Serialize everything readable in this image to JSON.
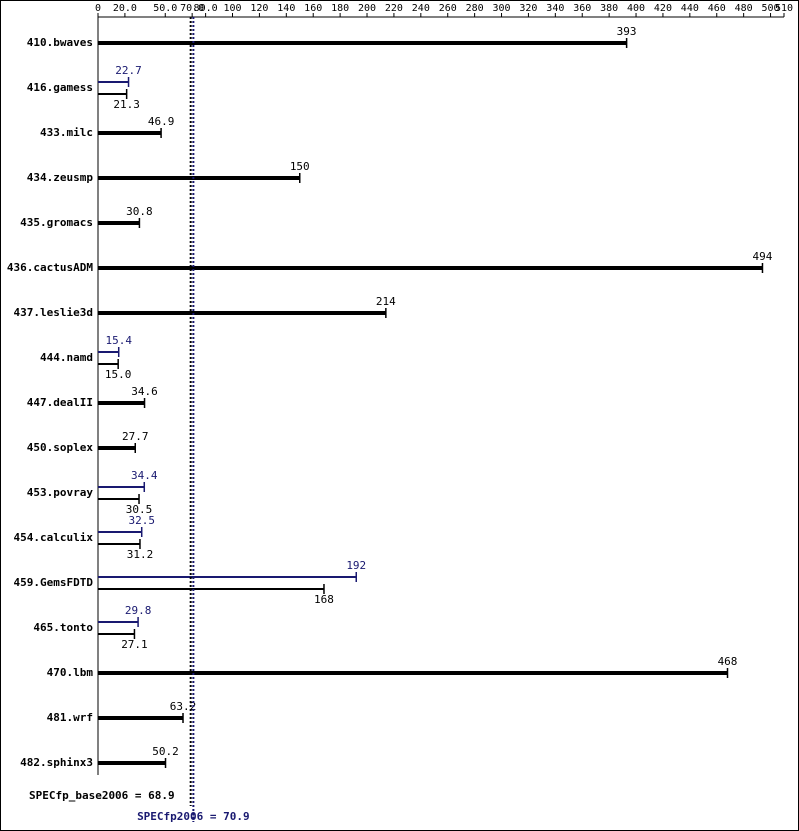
{
  "chart_data": {
    "type": "bar",
    "orientation": "horizontal",
    "categories": [
      "410.bwaves",
      "416.gamess",
      "433.milc",
      "434.zeusmp",
      "435.gromacs",
      "436.cactusADM",
      "437.leslie3d",
      "444.namd",
      "447.dealII",
      "450.soplex",
      "453.povray",
      "454.calculix",
      "459.GemsFDTD",
      "465.tonto",
      "470.lbm",
      "481.wrf",
      "482.sphinx3"
    ],
    "series": [
      {
        "color": "#000000",
        "values": [
          393,
          21.3,
          46.9,
          150,
          30.8,
          494,
          214,
          15,
          34.6,
          27.7,
          30.5,
          31.2,
          168,
          27.1,
          468,
          63.2,
          50.2
        ],
        "value_labels": [
          "393",
          "21.3",
          "46.9",
          "150",
          "30.8",
          "494",
          "214",
          "15.0",
          "34.6",
          "27.7",
          "30.5",
          "31.2",
          "168",
          "27.1",
          "468",
          "63.2",
          "50.2"
        ]
      },
      {
        "color": "#191970",
        "values": [
          null,
          22.7,
          null,
          null,
          null,
          null,
          null,
          15.4,
          null,
          null,
          34.4,
          32.5,
          192,
          29.8,
          null,
          null,
          null
        ],
        "value_labels": [
          null,
          "22.7",
          null,
          null,
          null,
          null,
          null,
          "15.4",
          null,
          null,
          "34.4",
          "32.5",
          "192",
          "29.8",
          null,
          null,
          null
        ]
      }
    ],
    "xlim": [
      0,
      510
    ],
    "xticks": [
      0,
      {
        "value": 20,
        "label": "20.0"
      },
      {
        "value": 50,
        "label": "50.0"
      },
      {
        "value": 70,
        "label": "70.0"
      },
      {
        "value": 80,
        "label": "80.0"
      },
      100,
      120,
      140,
      160,
      180,
      200,
      220,
      240,
      260,
      280,
      300,
      320,
      340,
      360,
      380,
      400,
      420,
      440,
      460,
      480,
      500,
      510
    ],
    "reference_lines": [
      {
        "label": "SPECfp_base2006 = 68.9",
        "value": 68.9,
        "color": "#000000"
      },
      {
        "label": "SPECfp2006 = 70.9",
        "value": 70.9,
        "color": "#191970"
      }
    ]
  }
}
